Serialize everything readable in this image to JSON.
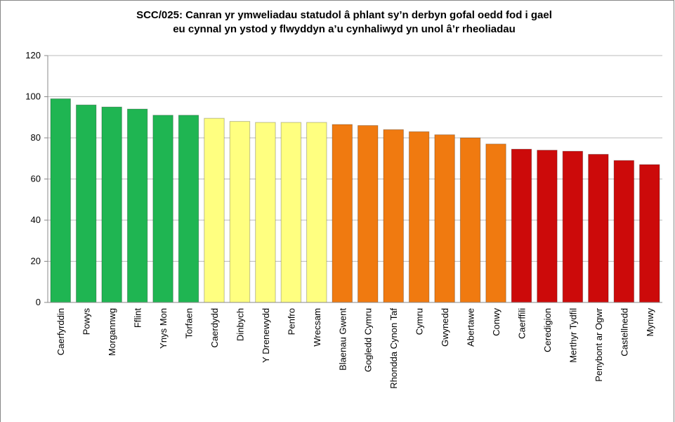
{
  "chart_data": {
    "type": "bar",
    "title": [
      "SCC/025: Canran yr ymweliadau statudol â phlant sy’n derbyn gofal oedd fod i gael",
      "eu cynnal yn ystod y flwyddyn a’u cynhaliwyd yn unol â’r rheoliadau"
    ],
    "categories": [
      "Caerfyrddin",
      "Powys",
      "Morgannwg",
      "Fflint",
      "Ynys Mon",
      "Torfaen",
      "Caerdydd",
      "Dinbych",
      "Y Drenewydd",
      "Penfro",
      "Wrecsam",
      "Blaenau Gwent",
      "Gogledd Cymru",
      "Rhondda Cynon Taf",
      "Cymru",
      "Gwynedd",
      "Abertawe",
      "Conwy",
      "Caerffili",
      "Ceredigion",
      "Merthyr Tydfil",
      "Penybont ar Ogwr",
      "Castellnedd",
      "Mynwy"
    ],
    "values": [
      99,
      96,
      95,
      94,
      91,
      91,
      89.5,
      88,
      87.5,
      87.5,
      87.5,
      86.5,
      86,
      84,
      83,
      81.5,
      80,
      77,
      74.5,
      74,
      73.5,
      72,
      69,
      67
    ],
    "colors": [
      "#1fb552",
      "#1fb552",
      "#1fb552",
      "#1fb552",
      "#1fb552",
      "#1fb552",
      "#ffff80",
      "#ffff80",
      "#ffff80",
      "#ffff80",
      "#ffff80",
      "#f07a10",
      "#f07a10",
      "#f07a10",
      "#f07a10",
      "#f07a10",
      "#f07a10",
      "#f07a10",
      "#cc0a0a",
      "#cc0a0a",
      "#cc0a0a",
      "#cc0a0a",
      "#cc0a0a",
      "#cc0a0a"
    ],
    "ylim": [
      0,
      120
    ],
    "yticks": [
      0,
      20,
      40,
      60,
      80,
      100,
      120
    ],
    "grid": true
  }
}
